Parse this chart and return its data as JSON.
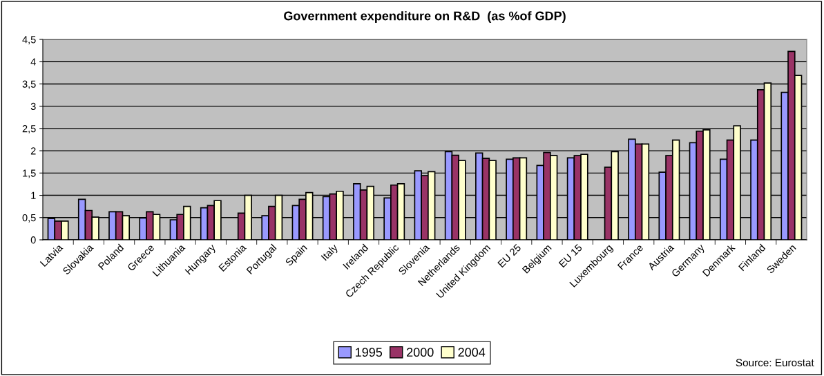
{
  "chart_data": {
    "type": "bar",
    "title": "Government expenditure on R&D  (as %of GDP)",
    "categories": [
      "Latvia",
      "Slovakia",
      "Poland",
      "Greece",
      "Lithuania",
      "Hungary",
      "Estonia",
      "Portugal",
      "Spain",
      "Italy",
      "Ireland",
      "Czech Republic",
      "Slovenia",
      "Netherlands",
      "United Kingdom",
      "EU 25",
      "Belgium",
      "EU 15",
      "Luxembourg",
      "France",
      "Austria",
      "Germany",
      "Denmark",
      "Finland",
      "Sweden"
    ],
    "series": [
      {
        "name": "1995",
        "color": "#9999ff",
        "values": [
          0.48,
          0.91,
          0.63,
          0.49,
          0.45,
          0.72,
          null,
          0.54,
          0.77,
          0.97,
          1.26,
          0.94,
          1.55,
          1.98,
          1.95,
          1.81,
          1.67,
          1.84,
          null,
          2.26,
          1.52,
          2.18,
          1.81,
          2.24,
          3.31
        ]
      },
      {
        "name": "2000",
        "color": "#993366",
        "values": [
          0.42,
          0.66,
          0.63,
          0.63,
          0.57,
          0.77,
          0.6,
          0.75,
          0.91,
          1.03,
          1.12,
          1.23,
          1.44,
          1.9,
          1.83,
          1.84,
          1.96,
          1.89,
          1.63,
          2.15,
          1.89,
          2.44,
          2.24,
          3.37,
          4.23
        ]
      },
      {
        "name": "2004",
        "color": "#ffffcc",
        "values": [
          0.42,
          0.51,
          0.54,
          0.57,
          0.75,
          0.88,
          1.0,
          1.0,
          1.06,
          1.09,
          1.2,
          1.26,
          1.53,
          1.78,
          1.78,
          1.84,
          1.89,
          1.92,
          1.98,
          2.15,
          2.24,
          2.47,
          2.56,
          3.52,
          3.69
        ]
      }
    ],
    "ylim": [
      0,
      4.5
    ],
    "yticks": [
      0,
      {
        "value": 0.5,
        "label": "0,5"
      },
      1,
      {
        "value": 1.5,
        "label": "1,5"
      },
      2,
      {
        "value": 2.5,
        "label": "2,5"
      },
      3,
      {
        "value": 3.5,
        "label": "3,5"
      },
      4,
      {
        "value": 4.5,
        "label": "4,5"
      }
    ],
    "grid": "y",
    "legend": "bottom",
    "annotations": [
      "Source: Eurostat"
    ]
  }
}
